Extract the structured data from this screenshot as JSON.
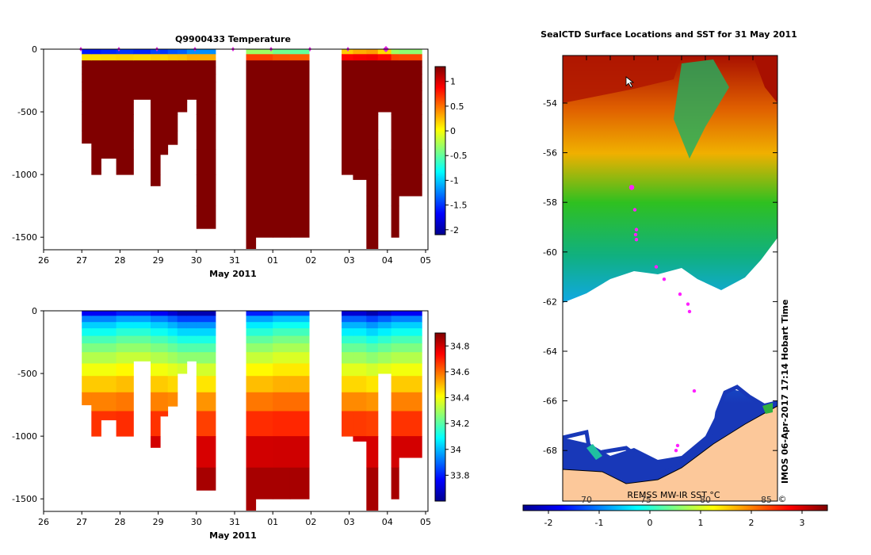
{
  "chart_data": [
    {
      "type": "heatmap",
      "title": "Q9900433  Temperature",
      "xlabel": "May 2011",
      "ylabel": "",
      "x_tick_labels": [
        "26",
        "27",
        "28",
        "29",
        "30",
        "31",
        "01",
        "02",
        "03",
        "04",
        "05"
      ],
      "y_tick_labels": [
        "0",
        "-500",
        "-1000",
        "-1500"
      ],
      "xlim": [
        "26",
        "05"
      ],
      "ylim": [
        -1600,
        0
      ],
      "colorbar": {
        "min": -2.1,
        "max": 1.3,
        "tick_labels": [
          "1",
          "0.5",
          "0",
          "-0.5",
          "-1",
          "-1.5",
          "-2"
        ]
      },
      "profiles": [
        {
          "x": 27.0,
          "max_depth": 750,
          "surface": -1.6,
          "deep": 1.3
        },
        {
          "x": 27.25,
          "max_depth": 1000,
          "surface": -1.6,
          "deep": 1.3
        },
        {
          "x": 27.5,
          "max_depth": 870,
          "surface": -1.55,
          "deep": 1.3
        },
        {
          "x": 27.9,
          "max_depth": 1000,
          "surface": -1.5,
          "deep": 1.3
        },
        {
          "x": 28.35,
          "max_depth": 400,
          "surface": -1.55,
          "deep": 1.3
        },
        {
          "x": 28.8,
          "max_depth": 1090,
          "surface": -1.45,
          "deep": 1.3
        },
        {
          "x": 29.05,
          "max_depth": 840,
          "surface": -1.5,
          "deep": 1.3
        },
        {
          "x": 29.25,
          "max_depth": 760,
          "surface": -1.4,
          "deep": 1.3
        },
        {
          "x": 29.5,
          "max_depth": 500,
          "surface": -1.35,
          "deep": 1.3
        },
        {
          "x": 29.75,
          "max_depth": 400,
          "surface": -1.2,
          "deep": 1.3
        },
        {
          "x": 30.0,
          "max_depth": 1430,
          "surface": -1.2,
          "deep": 1.3
        },
        {
          "x": 31.3,
          "max_depth": 1590,
          "surface": -0.3,
          "deep": 1.3
        },
        {
          "x": 31.55,
          "max_depth": 1500,
          "surface": -0.3,
          "deep": 1.3
        },
        {
          "x": 32.0,
          "max_depth": 1500,
          "surface": -0.45,
          "deep": 1.3
        },
        {
          "x": 32.45,
          "max_depth": 1500,
          "surface": -0.5,
          "deep": 1.3
        },
        {
          "x": 33.8,
          "max_depth": 1000,
          "surface": 0.2,
          "deep": 1.3
        },
        {
          "x": 34.1,
          "max_depth": 1040,
          "surface": 0.3,
          "deep": 1.3
        },
        {
          "x": 34.45,
          "max_depth": 1590,
          "surface": 0.35,
          "deep": 1.3
        },
        {
          "x": 34.75,
          "max_depth": 500,
          "surface": 0.15,
          "deep": 1.3
        },
        {
          "x": 35.1,
          "max_depth": 1500,
          "surface": -0.3,
          "deep": 1.3
        },
        {
          "x": 35.3,
          "max_depth": 1170,
          "surface": -0.35,
          "deep": 1.3
        }
      ]
    },
    {
      "type": "heatmap",
      "title": "",
      "xlabel": "May 2011",
      "ylabel": "",
      "x_tick_labels": [
        "26",
        "27",
        "28",
        "29",
        "30",
        "31",
        "01",
        "02",
        "03",
        "04",
        "05"
      ],
      "y_tick_labels": [
        "0",
        "-500",
        "-1000",
        "-1500"
      ],
      "xlim": [
        "26",
        "05"
      ],
      "ylim": [
        -1600,
        0
      ],
      "colorbar": {
        "min": 33.6,
        "max": 34.9,
        "tick_labels": [
          "34.8",
          "34.6",
          "34.4",
          "34.2",
          "34",
          "33.8"
        ]
      },
      "profiles": [
        {
          "x": 27.0,
          "max_depth": 750,
          "surface": 33.75,
          "deep": 34.85
        },
        {
          "x": 27.25,
          "max_depth": 1000,
          "surface": 33.75,
          "deep": 34.85
        },
        {
          "x": 27.5,
          "max_depth": 870,
          "surface": 33.75,
          "deep": 34.85
        },
        {
          "x": 27.9,
          "max_depth": 1000,
          "surface": 33.8,
          "deep": 34.85
        },
        {
          "x": 28.35,
          "max_depth": 400,
          "surface": 33.8,
          "deep": 34.85
        },
        {
          "x": 28.8,
          "max_depth": 1090,
          "surface": 33.75,
          "deep": 34.85
        },
        {
          "x": 29.05,
          "max_depth": 840,
          "surface": 33.75,
          "deep": 34.85
        },
        {
          "x": 29.25,
          "max_depth": 760,
          "surface": 33.7,
          "deep": 34.85
        },
        {
          "x": 29.5,
          "max_depth": 500,
          "surface": 33.65,
          "deep": 34.85
        },
        {
          "x": 29.75,
          "max_depth": 400,
          "surface": 33.65,
          "deep": 34.85
        },
        {
          "x": 30.0,
          "max_depth": 1430,
          "surface": 33.65,
          "deep": 34.85
        },
        {
          "x": 31.3,
          "max_depth": 1590,
          "surface": 33.8,
          "deep": 34.85
        },
        {
          "x": 31.55,
          "max_depth": 1500,
          "surface": 33.8,
          "deep": 34.85
        },
        {
          "x": 32.0,
          "max_depth": 1500,
          "surface": 33.85,
          "deep": 34.85
        },
        {
          "x": 32.45,
          "max_depth": 1500,
          "surface": 33.85,
          "deep": 34.85
        },
        {
          "x": 33.8,
          "max_depth": 1000,
          "surface": 33.7,
          "deep": 34.85
        },
        {
          "x": 34.1,
          "max_depth": 1040,
          "surface": 33.7,
          "deep": 34.85
        },
        {
          "x": 34.45,
          "max_depth": 1590,
          "surface": 33.65,
          "deep": 34.85
        },
        {
          "x": 34.75,
          "max_depth": 500,
          "surface": 33.7,
          "deep": 34.85
        },
        {
          "x": 35.1,
          "max_depth": 1500,
          "surface": 33.75,
          "deep": 34.85
        },
        {
          "x": 35.3,
          "max_depth": 1170,
          "surface": 33.75,
          "deep": 34.85
        }
      ]
    },
    {
      "type": "heatmap",
      "title": "SealCTD Surface Locations and SST for 31 May 2011",
      "xlabel": "",
      "ylabel": "",
      "y_tick_labels": [
        "-54",
        "-56",
        "-58",
        "-60",
        "-62",
        "-64",
        "-66",
        "-68"
      ],
      "ylim": [
        -70,
        -52
      ],
      "colorbar": {
        "label": "REMSS MW-IR SST °C",
        "min": -2.5,
        "max": 3.5,
        "tick_labels": [
          "-2",
          "-1",
          "0",
          "1",
          "2",
          "3"
        ],
        "top_tick_labels": [
          "70",
          "75",
          "80",
          "85"
        ]
      },
      "side_text": "IMOS 06-Apr-2017 17:14 Hobart Time",
      "copyright": "©",
      "seal_positions_lat": [
        -57.4,
        -58.3,
        -59.1,
        -59.3,
        -59.5,
        -60.6,
        -61.1,
        -61.7,
        -62.1,
        -62.4,
        -65.6,
        -67.8,
        -68.0
      ]
    }
  ]
}
